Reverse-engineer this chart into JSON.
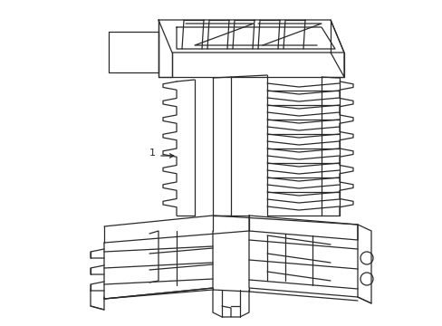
{
  "background_color": "#ffffff",
  "line_color": "#2a2a2a",
  "line_width": 0.9,
  "label_text": "1"
}
